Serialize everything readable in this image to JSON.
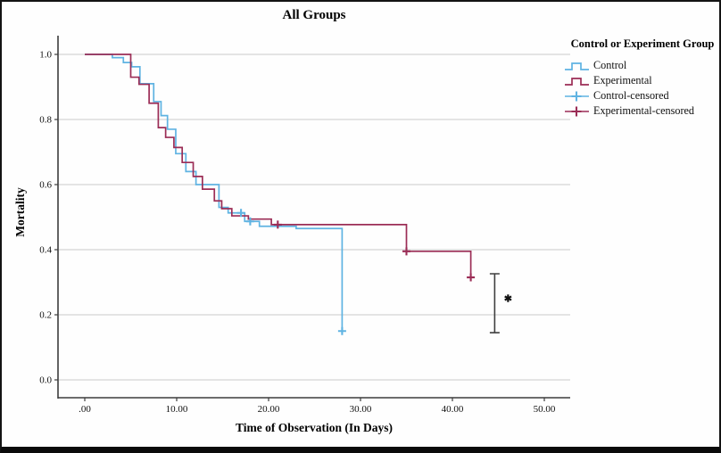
{
  "figure": {
    "title": "All Groups",
    "legend": {
      "title": "Control or Experiment Group",
      "items": [
        {
          "label": "Control",
          "type": "step-line",
          "color": "#5fb3e2"
        },
        {
          "label": "Experimental",
          "type": "step-line",
          "color": "#9b2d56"
        },
        {
          "label": "Control-censored",
          "type": "censor-plus",
          "color": "#5fb3e2"
        },
        {
          "label": "Experimental-censored",
          "type": "censor-plus",
          "color": "#9b2d56"
        }
      ]
    }
  },
  "chart_data": {
    "type": "line",
    "subtype": "kaplan-meier-step",
    "title": "All Groups",
    "xlabel": "Time of Observation (In Days)",
    "ylabel": "Mortality",
    "grid": "horizontal",
    "legend_position": "right",
    "x_ticks": {
      "values": [
        0,
        10,
        20,
        30,
        40,
        50
      ],
      "labels": [
        ".00",
        "10.00",
        "20.00",
        "30.00",
        "40.00",
        "50.00"
      ]
    },
    "y_ticks": {
      "values": [
        0.0,
        0.2,
        0.4,
        0.6,
        0.8,
        1.0
      ],
      "labels": [
        "0.0",
        "0.2",
        "0.4",
        "0.6",
        "0.8",
        "1.0"
      ]
    },
    "xlim": [
      -3,
      53
    ],
    "ylim": [
      -0.05,
      1.05
    ],
    "series": [
      {
        "name": "Control",
        "color": "#5fb3e2",
        "steps": [
          [
            0,
            1.0
          ],
          [
            3,
            0.99
          ],
          [
            4.2,
            0.975
          ],
          [
            5.1,
            0.962
          ],
          [
            6,
            0.91
          ],
          [
            7.5,
            0.855
          ],
          [
            8.3,
            0.812
          ],
          [
            9,
            0.77
          ],
          [
            9.9,
            0.695
          ],
          [
            11,
            0.64
          ],
          [
            12.1,
            0.6
          ],
          [
            14.6,
            0.53
          ],
          [
            15.6,
            0.513
          ],
          [
            17.4,
            0.487
          ],
          [
            19,
            0.472
          ],
          [
            23,
            0.465
          ],
          [
            28,
            0.15
          ]
        ]
      },
      {
        "name": "Experimental",
        "color": "#9b2d56",
        "steps": [
          [
            0,
            1.0
          ],
          [
            5,
            0.93
          ],
          [
            5.9,
            0.908
          ],
          [
            7,
            0.85
          ],
          [
            8,
            0.775
          ],
          [
            8.8,
            0.745
          ],
          [
            9.7,
            0.714
          ],
          [
            10.6,
            0.668
          ],
          [
            11.8,
            0.625
          ],
          [
            12.8,
            0.586
          ],
          [
            14.1,
            0.55
          ],
          [
            14.9,
            0.526
          ],
          [
            16,
            0.504
          ],
          [
            17.8,
            0.494
          ],
          [
            20.3,
            0.477
          ],
          [
            35,
            0.395
          ],
          [
            42,
            0.315
          ]
        ]
      }
    ],
    "censored": [
      {
        "series": "Control",
        "color": "#5fb3e2",
        "points": [
          [
            17,
            0.513
          ],
          [
            18,
            0.487
          ],
          [
            28,
            0.15
          ]
        ]
      },
      {
        "series": "Experimental",
        "color": "#9b2d56",
        "points": [
          [
            21,
            0.477
          ],
          [
            35,
            0.395
          ],
          [
            42,
            0.315
          ]
        ]
      }
    ],
    "annotation": {
      "significance_label": "*",
      "bar": {
        "x_time": 44.6,
        "v_top": 0.326,
        "v_bottom": 0.145
      }
    },
    "colors": {
      "grid": "#c9c9c9",
      "axis": "#3c3c3c",
      "tick_text": "#111111",
      "annotation": "#3f3f3f"
    }
  }
}
